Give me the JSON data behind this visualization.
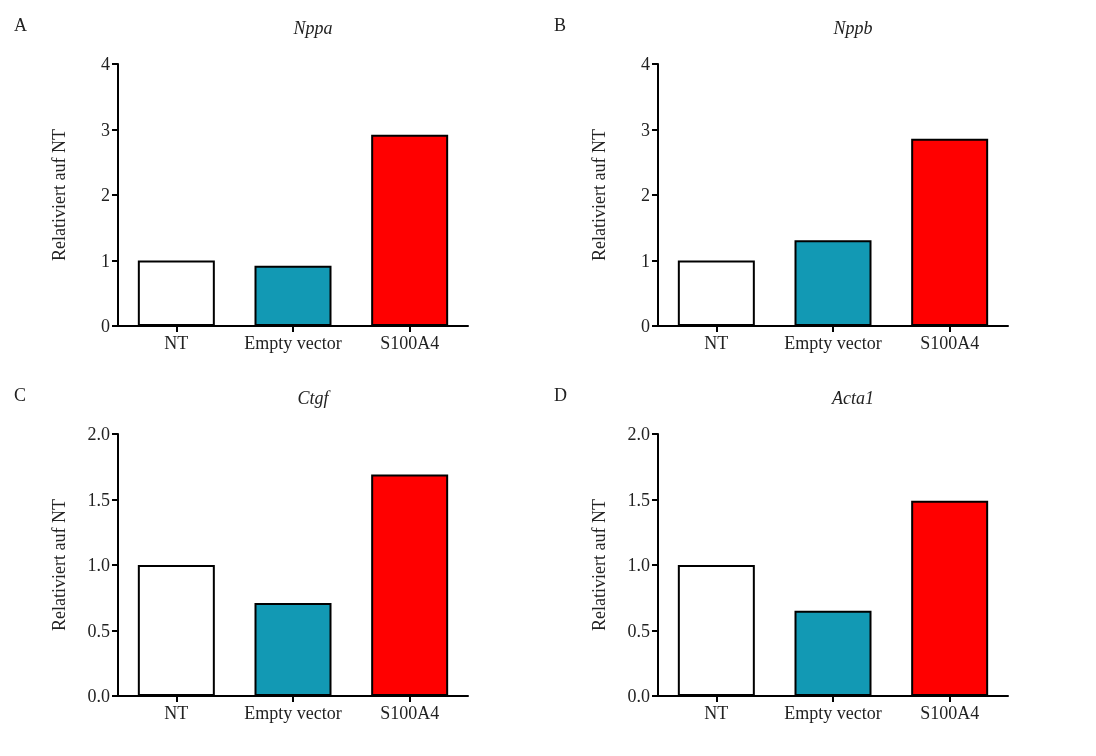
{
  "chart_data": [
    {
      "type": "bar",
      "title": "Nppa",
      "annotations": [
        "A"
      ],
      "ylabel": "Relativiert auf NT",
      "categories": [
        "NT",
        "Empty vector",
        "S100A4"
      ],
      "values": [
        1,
        0.92,
        2.92
      ],
      "colors": [
        "#ffffff",
        "#1299b4",
        "#ff0000"
      ],
      "ylim": [
        0,
        4
      ],
      "yticks": [
        0,
        1,
        2,
        3,
        4
      ],
      "grid": false
    },
    {
      "type": "bar",
      "title": "Nppb",
      "annotations": [
        "B"
      ],
      "ylabel": "Relativiert auf NT",
      "categories": [
        "NT",
        "Empty vector",
        "S100A4"
      ],
      "values": [
        1,
        1.31,
        2.86
      ],
      "colors": [
        "#ffffff",
        "#1299b4",
        "#ff0000"
      ],
      "ylim": [
        0,
        4
      ],
      "yticks": [
        0,
        1,
        2,
        3,
        4
      ],
      "grid": false
    },
    {
      "type": "bar",
      "title": "Ctgf",
      "annotations": [
        "C"
      ],
      "ylabel": "Relativiert auf NT",
      "categories": [
        "NT",
        "Empty vector",
        "S100A4"
      ],
      "values": [
        1,
        0.71,
        1.69
      ],
      "colors": [
        "#ffffff",
        "#1299b4",
        "#ff0000"
      ],
      "ylim": [
        0,
        2
      ],
      "yticks": [
        {
          "value": 0,
          "label": "0.0"
        },
        {
          "value": 0.5,
          "label": "0.5"
        },
        {
          "value": 1,
          "label": "1.0"
        },
        {
          "value": 1.5,
          "label": "1.5"
        },
        {
          "value": 2,
          "label": "2.0"
        }
      ],
      "grid": false
    },
    {
      "type": "bar",
      "title": "Acta1",
      "annotations": [
        "D"
      ],
      "ylabel": "Relativiert auf NT",
      "categories": [
        "NT",
        "Empty vector",
        "S100A4"
      ],
      "values": [
        1,
        0.65,
        1.49
      ],
      "colors": [
        "#ffffff",
        "#1299b4",
        "#ff0000"
      ],
      "ylim": [
        0,
        2
      ],
      "yticks": [
        {
          "value": 0,
          "label": "0.0"
        },
        {
          "value": 0.5,
          "label": "0.5"
        },
        {
          "value": 1,
          "label": "1.0"
        },
        {
          "value": 1.5,
          "label": "1.5"
        },
        {
          "value": 2,
          "label": "2.0"
        }
      ],
      "grid": false
    }
  ]
}
